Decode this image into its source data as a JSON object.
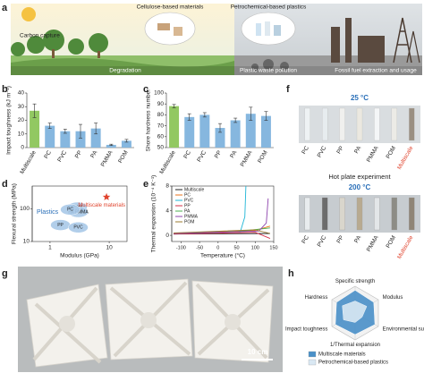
{
  "panel_labels": [
    "a",
    "b",
    "c",
    "d",
    "e",
    "f",
    "g",
    "h"
  ],
  "panel_a": {
    "labels": [
      "Carbon capture",
      "Cellulose-based materials",
      "Petrochemical-based plastics",
      "Degradation",
      "Plastic waste pollution",
      "Fossil fuel extraction and usage"
    ]
  },
  "chart_data": [
    {
      "type": "bar",
      "ylabel": "Impact toughness (kJ m⁻²)",
      "categories": [
        "Multiscale",
        "PC",
        "PVC",
        "PP",
        "PA",
        "PMMA",
        "POM"
      ],
      "values": [
        27,
        16,
        12,
        12,
        14,
        2,
        5
      ],
      "errors": [
        5,
        2,
        1.5,
        5,
        4,
        0.5,
        1
      ],
      "color": "#86b7df",
      "highlight_color": "#92c862",
      "ylim": [
        0,
        40
      ],
      "yticks": [
        0,
        10,
        20,
        30,
        40
      ]
    },
    {
      "type": "bar",
      "ylabel": "Shore hardness number",
      "categories": [
        "Multiscale",
        "PC",
        "PVC",
        "PP",
        "PA",
        "PMMA",
        "POM"
      ],
      "values": [
        88,
        78,
        80,
        68,
        75,
        81,
        79
      ],
      "errors": [
        1.5,
        3,
        2,
        4,
        2,
        6,
        4
      ],
      "color": "#86b7df",
      "highlight_color": "#92c862",
      "ylim": [
        50,
        100
      ],
      "yticks": [
        50,
        60,
        70,
        80,
        90,
        100
      ]
    },
    {
      "type": "ashby",
      "xlabel": "Modulus (GPa)",
      "ylabel": "Flexural strength (MPa)",
      "log": true,
      "xlim": [
        0.5,
        20
      ],
      "ylim": [
        10,
        500
      ],
      "xticks": [
        1,
        10
      ],
      "yticks": [
        10,
        100
      ],
      "group_label": "Plastics",
      "region_color": "#a9c9e8",
      "regions": [
        {
          "name": "POM",
          "x": 2.9,
          "y": 110
        },
        {
          "name": "PA PMMA",
          "x": 3.0,
          "y": 80
        },
        {
          "name": "PC",
          "x": 2.2,
          "y": 95
        },
        {
          "name": "PP",
          "x": 1.5,
          "y": 32
        },
        {
          "name": "PVC",
          "x": 3.0,
          "y": 27
        }
      ],
      "highlight": {
        "name": "Multiscale materials",
        "x": 9,
        "y": 230,
        "color": "#e0442e"
      }
    },
    {
      "type": "line",
      "xlabel": "Temperature (°C)",
      "ylabel": "Thermal expansion (10⁻⁴ K⁻¹)",
      "xlim": [
        -125,
        150
      ],
      "ylim": [
        -1,
        8
      ],
      "xticks": [
        -100,
        -50,
        0,
        50,
        100,
        150
      ],
      "yticks": [
        0,
        4,
        8
      ],
      "series": [
        {
          "name": "Multiscale",
          "color": "#222222",
          "x": [
            -120,
            140
          ],
          "values": [
            0.2,
            0.3
          ]
        },
        {
          "name": "PC",
          "color": "#e8731b",
          "x": [
            -120,
            100,
            140
          ],
          "values": [
            0.3,
            0.8,
            1.5
          ]
        },
        {
          "name": "PVC",
          "color": "#1fb5d6",
          "x": [
            -120,
            60,
            72,
            75
          ],
          "values": [
            0.3,
            0.6,
            3,
            8
          ]
        },
        {
          "name": "PP",
          "color": "#d6304a",
          "x": [
            -120,
            100,
            140
          ],
          "values": [
            0.2,
            0.5,
            -0.5
          ]
        },
        {
          "name": "PA",
          "color": "#4caf50",
          "x": [
            -120,
            50,
            140
          ],
          "values": [
            0.3,
            0.6,
            1.2
          ]
        },
        {
          "name": "PMMA",
          "color": "#8e44ad",
          "x": [
            -120,
            110,
            130,
            135
          ],
          "values": [
            0.3,
            0.7,
            2,
            6
          ]
        },
        {
          "name": "POM",
          "color": "#9b7b2f",
          "x": [
            -120,
            100,
            140
          ],
          "values": [
            0.4,
            0.9,
            0.3
          ]
        }
      ]
    },
    {
      "type": "radar",
      "axes": [
        "Specific strength",
        "Modulus",
        "Environmental sustainability",
        "1/Thermal expansion",
        "Impact toughness",
        "Hardness"
      ],
      "rlim": [
        0,
        1
      ],
      "series": [
        {
          "name": "Multiscale materials",
          "color": "#4a90c8",
          "values": [
            0.85,
            0.8,
            0.85,
            0.8,
            0.85,
            0.8
          ]
        },
        {
          "name": "Petrochemical-based plastics",
          "color": "#d9e8f3",
          "values": [
            0.45,
            0.5,
            0.3,
            0.35,
            0.5,
            0.55
          ]
        }
      ]
    }
  ],
  "panel_f": {
    "top_title": "25 °C",
    "middle": "Hot plate experiment",
    "bottom_title": "200 °C",
    "samples": [
      "PC",
      "PVC",
      "PP",
      "PA",
      "PMMA",
      "POM",
      "Multiscale"
    ],
    "highlight_color": "#e0442e"
  },
  "panel_g": {
    "scale_bar": "10 cm"
  }
}
